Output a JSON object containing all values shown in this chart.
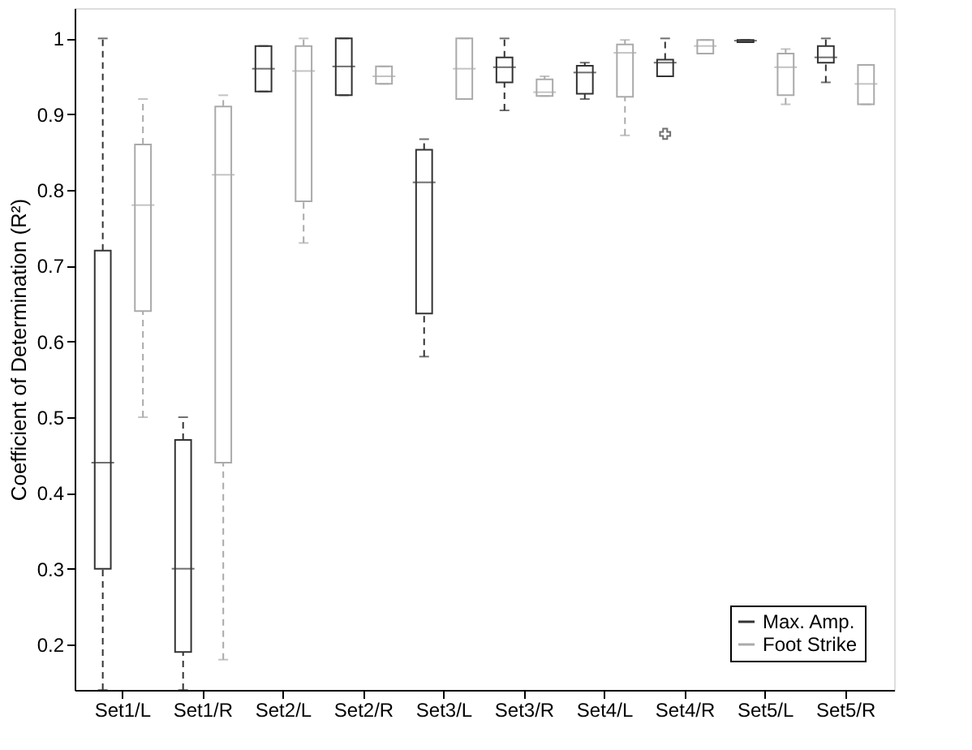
{
  "chart_data": {
    "type": "box",
    "ylabel": "Coefficient of Determination (R²)",
    "categories": [
      "Set1/L",
      "Set1/R",
      "Set2/L",
      "Set2/R",
      "Set3/L",
      "Set3/R",
      "Set4/L",
      "Set4/R",
      "Set5/L",
      "Set5/R"
    ],
    "ylim": [
      0.14,
      1.04
    ],
    "yticks": [
      0.2,
      0.3,
      0.4,
      0.5,
      0.6,
      0.7,
      0.8,
      0.9,
      {
        "value": 1,
        "label": "1"
      }
    ],
    "grid": false,
    "legend": "bottom right",
    "line_style": "dashed",
    "series": [
      {
        "name": "Max. Amp.",
        "color": "#333333",
        "boxes": [
          {
            "low": 0.14,
            "q1": 0.3,
            "median": 0.44,
            "q3": 0.72,
            "high": 1.0
          },
          {
            "low": 0.14,
            "q1": 0.19,
            "median": 0.3,
            "q3": 0.47,
            "high": 0.5
          },
          {
            "low": 0.93,
            "q1": 0.93,
            "median": 0.96,
            "q3": 0.99,
            "high": 0.99
          },
          {
            "low": 0.925,
            "q1": 0.925,
            "median": 0.963,
            "q3": 1.0,
            "high": 1.0
          },
          {
            "low": 0.58,
            "q1": 0.637,
            "median": 0.81,
            "q3": 0.853,
            "high": 0.867
          },
          {
            "low": 0.905,
            "q1": 0.942,
            "median": 0.962,
            "q3": 0.975,
            "high": 1.0
          },
          {
            "low": 0.92,
            "q1": 0.927,
            "median": 0.955,
            "q3": 0.964,
            "high": 0.968
          },
          {
            "low": 0.95,
            "q1": 0.95,
            "median": 0.968,
            "q3": 0.972,
            "high": 1.0,
            "outliers": [
              0.874
            ]
          },
          {
            "low": 0.995,
            "q1": 0.995,
            "median": 0.997,
            "q3": 0.998,
            "high": 0.998
          },
          {
            "low": 0.942,
            "q1": 0.968,
            "median": 0.975,
            "q3": 0.99,
            "high": 1.0
          }
        ]
      },
      {
        "name": "Foot Strike",
        "color": "#aaaaaa",
        "boxes": [
          {
            "low": 0.5,
            "q1": 0.64,
            "median": 0.78,
            "q3": 0.86,
            "high": 0.92
          },
          {
            "low": 0.18,
            "q1": 0.44,
            "median": 0.82,
            "q3": 0.91,
            "high": 0.925
          },
          {
            "low": 0.73,
            "q1": 0.785,
            "median": 0.957,
            "q3": 0.99,
            "high": 1.0
          },
          {
            "low": 0.94,
            "q1": 0.94,
            "median": 0.95,
            "q3": 0.963,
            "high": 0.963
          },
          {
            "low": 0.92,
            "q1": 0.92,
            "median": 0.96,
            "q3": 1.0,
            "high": 1.0
          },
          {
            "low": 0.924,
            "q1": 0.924,
            "median": 0.929,
            "q3": 0.946,
            "high": 0.95
          },
          {
            "low": 0.872,
            "q1": 0.923,
            "median": 0.981,
            "q3": 0.992,
            "high": 0.998
          },
          {
            "low": 0.98,
            "q1": 0.98,
            "median": 0.99,
            "q3": 0.998,
            "high": 0.998
          },
          {
            "low": 0.913,
            "q1": 0.925,
            "median": 0.962,
            "q3": 0.98,
            "high": 0.986
          },
          {
            "low": 0.913,
            "q1": 0.913,
            "median": 0.94,
            "q3": 0.965,
            "high": 0.965
          }
        ]
      }
    ]
  }
}
